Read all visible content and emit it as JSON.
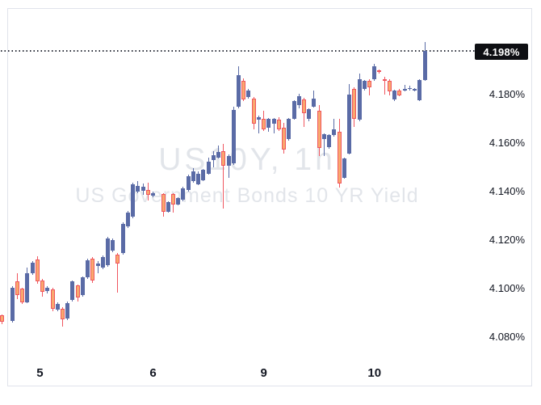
{
  "watermark": {
    "line1": "US10Y, 1h",
    "line2": "US Government Bonds 10 YR Yield"
  },
  "last_price": {
    "label": "4.198%"
  },
  "chart_data": {
    "type": "candlestick",
    "symbol": "US10Y",
    "interval": "1h",
    "title": "US10Y, 1h",
    "subtitle": "US Government Bonds 10 YR Yield",
    "unit": "percent_yield",
    "last_price": 4.198,
    "last_price_label": "4.198%",
    "grid": "off",
    "legend_position": "none",
    "y_axis_side": "right",
    "y_ticks": [
      {
        "label": "4.198%",
        "value": 4.198,
        "style": "badge"
      },
      {
        "label": "4.180%",
        "value": 4.18
      },
      {
        "label": "4.160%",
        "value": 4.16
      },
      {
        "label": "4.140%",
        "value": 4.14
      },
      {
        "label": "4.120%",
        "value": 4.12
      },
      {
        "label": "4.100%",
        "value": 4.1
      },
      {
        "label": "4.080%",
        "value": 4.08
      }
    ],
    "x_ticks": [
      {
        "label": "5",
        "slot": 7.5
      },
      {
        "label": "6",
        "slot": 30
      },
      {
        "label": "9",
        "slot": 52
      },
      {
        "label": "10",
        "slot": 74
      }
    ],
    "colors": {
      "up_body": "#5A6BA6",
      "up_wick": "#5A6BA6",
      "down_body": "#F9A86E",
      "down_edge": "#F0565F",
      "down_wick": "#F0565F",
      "last_price_line": "#2A2E39",
      "badge_bg": "#0E0F13",
      "badge_text": "#FFFFFF",
      "axis_text": "#131722",
      "frame_border": "#E0E3EB",
      "watermark": "#E2E5EA",
      "background": "#FFFFFF"
    },
    "candles_format": [
      "open",
      "high",
      "low",
      "close"
    ],
    "candles": [
      [
        4.089,
        4.0895,
        4.0855,
        4.0862
      ],
      null,
      [
        4.0867,
        4.101,
        4.086,
        4.1003
      ],
      [
        4.103,
        4.1063,
        4.0957,
        4.0973
      ],
      [
        4.1,
        4.1005,
        4.0937,
        4.0943
      ],
      [
        4.0943,
        4.1087,
        4.094,
        4.1063
      ],
      [
        4.1063,
        4.1113,
        4.1057,
        4.1107
      ],
      [
        4.112,
        4.1132,
        4.102,
        4.103
      ],
      [
        4.1033,
        4.104,
        4.0967,
        4.0987
      ],
      [
        4.099,
        4.101,
        4.098,
        4.1002
      ],
      [
        4.0997,
        4.1003,
        4.0908,
        4.0917
      ],
      [
        4.0913,
        4.0942,
        4.0905,
        4.0937
      ],
      [
        4.0917,
        4.0922,
        4.0843,
        4.0873
      ],
      [
        4.0877,
        4.0947,
        4.087,
        4.094
      ],
      [
        4.0953,
        4.1033,
        4.0947,
        4.103
      ],
      [
        4.1013,
        4.1017,
        4.0948,
        4.0963
      ],
      [
        4.0973,
        4.105,
        4.0967,
        4.1047
      ],
      [
        4.1047,
        4.1123,
        4.104,
        4.1117
      ],
      [
        4.1123,
        4.113,
        4.1025,
        4.1033
      ],
      [
        4.1093,
        4.1112,
        4.1063,
        4.1103
      ],
      [
        4.1087,
        4.1137,
        4.108,
        4.113
      ],
      [
        4.1097,
        4.1213,
        4.109,
        4.1207
      ],
      [
        4.1157,
        4.1207,
        4.115,
        4.12
      ],
      [
        4.114,
        4.1147,
        4.0983,
        4.1103
      ],
      [
        4.1147,
        4.1273,
        4.114,
        4.1267
      ],
      [
        4.1257,
        4.132,
        4.125,
        4.1313
      ],
      [
        4.1297,
        4.1437,
        4.129,
        4.143
      ],
      [
        4.14,
        4.1443,
        4.1393,
        4.1423
      ],
      [
        4.1403,
        4.1433,
        4.1387,
        4.142
      ],
      [
        4.1407,
        4.1437,
        4.1363,
        4.1387
      ],
      [
        4.1383,
        4.14,
        4.1377,
        4.1393
      ],
      null,
      [
        4.139,
        4.1395,
        4.1297,
        4.1317
      ],
      [
        4.1317,
        4.136,
        4.1313,
        4.1357
      ],
      [
        4.139,
        4.1393,
        4.1313,
        4.1347
      ],
      [
        4.1347,
        4.1377,
        4.1343,
        4.1373
      ],
      [
        4.1367,
        4.142,
        4.136,
        4.1413
      ],
      [
        4.1407,
        4.147,
        4.14,
        4.1463
      ],
      [
        4.1443,
        4.1497,
        4.1438,
        4.1483
      ],
      [
        4.143,
        4.1483,
        4.1427,
        4.1473
      ],
      [
        4.1447,
        4.1493,
        4.1443,
        4.149
      ],
      [
        4.1473,
        4.154,
        4.147,
        4.1523
      ],
      [
        4.153,
        4.1567,
        4.15,
        4.155
      ],
      [
        4.154,
        4.159,
        4.1537,
        4.1563
      ],
      [
        4.1567,
        4.1597,
        4.133,
        4.1507
      ],
      [
        4.1507,
        4.1553,
        4.1457,
        4.1547
      ],
      [
        4.1517,
        4.175,
        4.151,
        4.1737
      ],
      [
        4.175,
        4.1917,
        4.1743,
        4.188
      ],
      [
        4.1857,
        4.1867,
        4.1773,
        4.178
      ],
      [
        4.179,
        4.1823,
        4.1783,
        4.1817
      ],
      [
        4.1783,
        4.179,
        4.1657,
        4.168
      ],
      [
        4.1697,
        4.1712,
        4.164,
        4.1707
      ],
      [
        4.17,
        4.1733,
        4.165,
        4.1657
      ],
      [
        4.1663,
        4.1702,
        4.1647,
        4.17
      ],
      [
        4.168,
        4.1703,
        4.164,
        4.17
      ],
      [
        4.1697,
        4.1707,
        4.165,
        4.1657
      ],
      [
        4.1663,
        4.1683,
        4.1557,
        4.1573
      ],
      [
        4.1617,
        4.1705,
        4.161,
        4.17
      ],
      [
        4.17,
        4.1777,
        4.1695,
        4.1773
      ],
      [
        4.1757,
        4.1802,
        4.1743,
        4.1793
      ],
      [
        4.178,
        4.1787,
        4.1667,
        4.1723
      ],
      [
        4.17,
        4.1743,
        4.169,
        4.174
      ],
      [
        4.175,
        4.1817,
        4.1745,
        4.1783
      ],
      [
        4.1733,
        4.1757,
        4.1548,
        4.158
      ],
      [
        4.1617,
        4.164,
        4.1547,
        4.1637
      ],
      [
        4.1583,
        4.1637,
        4.1578,
        4.1633
      ],
      [
        4.1633,
        4.17,
        4.1628,
        4.1657
      ],
      [
        4.1647,
        4.17,
        4.1417,
        4.1433
      ],
      [
        4.1457,
        4.154,
        4.1452,
        4.1537
      ],
      [
        4.1557,
        4.1843,
        4.1552,
        4.18
      ],
      [
        4.1823,
        4.183,
        4.1667,
        4.17
      ],
      [
        4.1697,
        4.1887,
        4.169,
        4.1863
      ],
      [
        4.1823,
        4.186,
        4.1818,
        4.1857
      ],
      [
        4.1857,
        4.1862,
        4.1797,
        4.183
      ],
      [
        4.1863,
        4.1927,
        4.1858,
        4.1917
      ],
      [
        4.19,
        4.1905,
        4.1887,
        4.1893
      ],
      [
        4.1863,
        4.1872,
        4.18,
        4.186
      ],
      [
        4.1857,
        4.1862,
        4.1797,
        4.1813
      ],
      [
        4.178,
        4.182,
        4.1775,
        4.1817
      ],
      [
        4.1817,
        4.1822,
        4.1793,
        4.1797
      ],
      [
        4.1817,
        4.184,
        4.1813,
        4.1823
      ],
      [
        4.1823,
        4.1837,
        4.1818,
        4.1827
      ],
      [
        4.182,
        4.1827,
        4.1813,
        4.1823
      ],
      [
        4.1777,
        4.1863,
        4.1773,
        4.186
      ],
      [
        4.186,
        4.2017,
        4.1857,
        4.198
      ]
    ]
  }
}
